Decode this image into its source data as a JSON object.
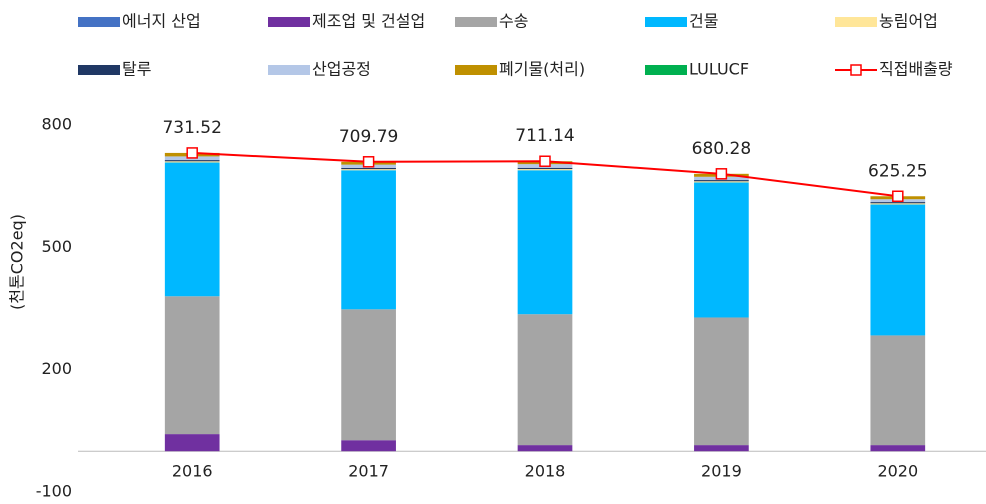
{
  "chart_data": {
    "type": "stacked_bar_line",
    "y_label": "(천톤CO2eq)",
    "categories": [
      "2016",
      "2017",
      "2018",
      "2019",
      "2020"
    ],
    "ylim": [
      -100,
      800
    ],
    "yticks": [
      -100,
      200,
      500,
      800
    ],
    "series": [
      {
        "name": "에너지 산업",
        "color": "#4472c4",
        "values": [
          0,
          0,
          0,
          0,
          0
        ]
      },
      {
        "name": "제조업 및 건설업",
        "color": "#7030a0",
        "values": [
          42,
          27,
          15,
          15,
          15
        ]
      },
      {
        "name": "수송",
        "color": "#a5a5a5",
        "values": [
          338,
          321,
          321,
          313,
          269
        ]
      },
      {
        "name": "건물",
        "color": "#00b8ff",
        "values": [
          328,
          341,
          353,
          331,
          321
        ]
      },
      {
        "name": "농림어업",
        "color": "#ffe699",
        "values": [
          3,
          2.79,
          3,
          3,
          3
        ]
      },
      {
        "name": "탈루",
        "color": "#203864",
        "values": [
          3,
          3,
          3,
          3,
          3
        ]
      },
      {
        "name": "산업공정",
        "color": "#b4c7e7",
        "values": [
          9,
          8,
          9,
          8,
          7
        ]
      },
      {
        "name": "폐기물(처리)",
        "color": "#bf9000",
        "values": [
          8.52,
          7,
          7.14,
          7.28,
          7.25
        ]
      },
      {
        "name": "LULUCF",
        "color": "#00b050",
        "values": [
          0,
          0,
          0,
          0,
          0
        ]
      },
      {
        "name": "직접배출량",
        "color": "#ff0000",
        "kind": "line",
        "values": [
          731.52,
          709.79,
          711.14,
          680.28,
          625.25
        ]
      }
    ]
  }
}
